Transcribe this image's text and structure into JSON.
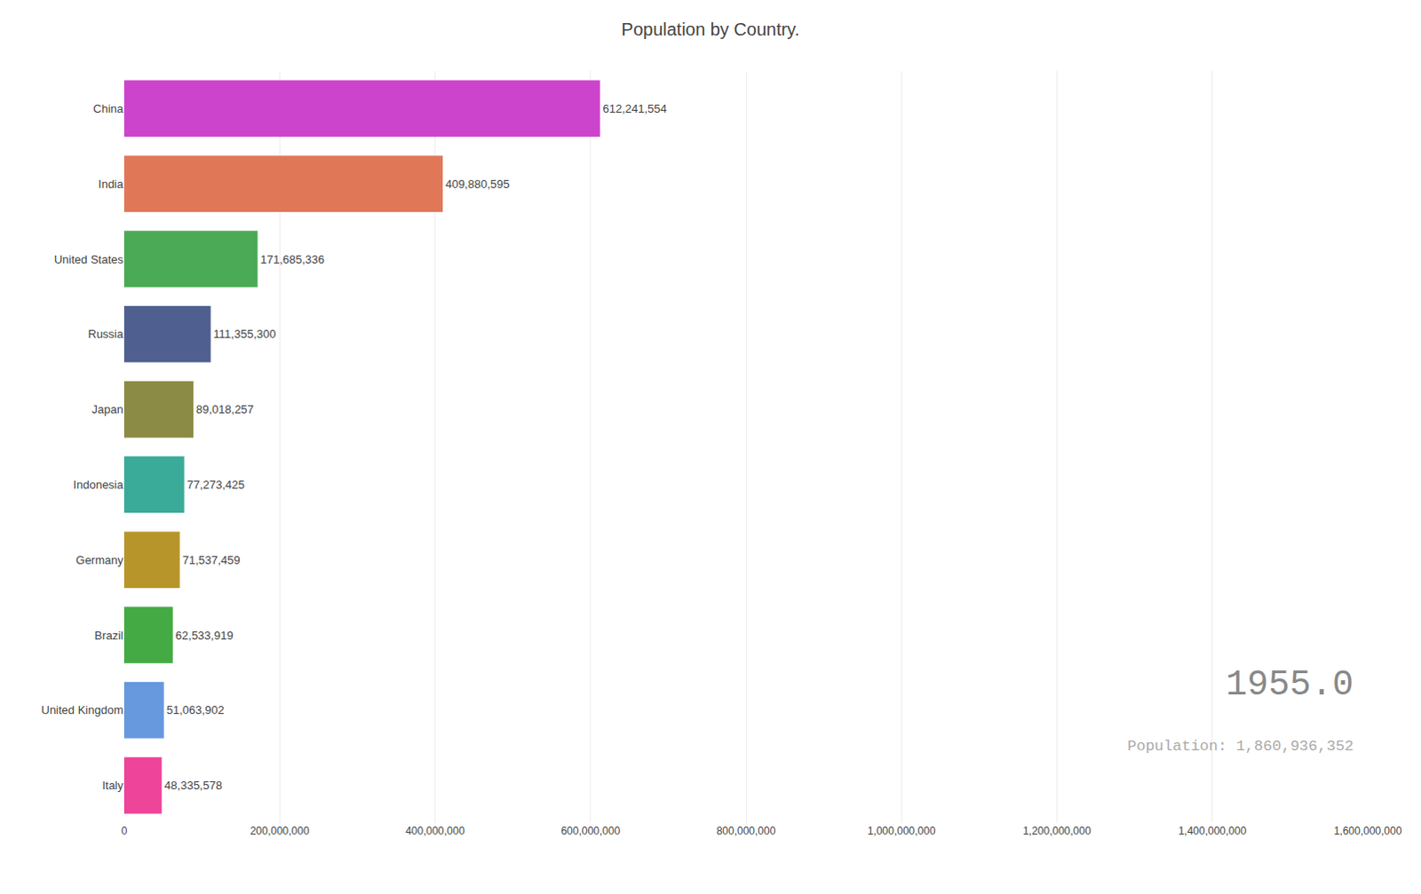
{
  "chart_data": {
    "type": "bar",
    "orientation": "horizontal",
    "title": "Population by Country.",
    "categories": [
      "China",
      "India",
      "United States",
      "Russia",
      "Japan",
      "Indonesia",
      "Germany",
      "Brazil",
      "United Kingdom",
      "Italy"
    ],
    "values": [
      612241554,
      409880595,
      171685336,
      111355300,
      89018257,
      77273425,
      71537459,
      62533919,
      51063902,
      48335578
    ],
    "value_labels": [
      "612,241,554",
      "409,880,595",
      "171,685,336",
      "111,355,300",
      "89,018,257",
      "77,273,425",
      "71,537,459",
      "62,533,919",
      "51,063,902",
      "48,335,578"
    ],
    "data_labels": true,
    "colors": [
      "#cc44cc",
      "#e07858",
      "#4aaa55",
      "#4f6090",
      "#8b8b45",
      "#3aaa99",
      "#b8952a",
      "#44aa44",
      "#6699dd",
      "#ee4499"
    ],
    "xlim": [
      0,
      1600000000
    ],
    "xticks": [
      0,
      {
        "value": 200000000,
        "label": "200,000,000"
      },
      {
        "value": 400000000,
        "label": "400,000,000"
      },
      {
        "value": 600000000,
        "label": "600,000,000"
      },
      {
        "value": 800000000,
        "label": "800,000,000"
      },
      {
        "value": 1000000000,
        "label": "1,000,000,000"
      },
      {
        "value": 1200000000,
        "label": "1,200,000,000"
      },
      {
        "value": 1400000000,
        "label": "1,400,000,000"
      },
      {
        "value": 1600000000,
        "label": "1,600,000,000"
      }
    ],
    "grid": true,
    "annotations": [
      "1955.0",
      "Population: 1,860,936,352"
    ]
  }
}
